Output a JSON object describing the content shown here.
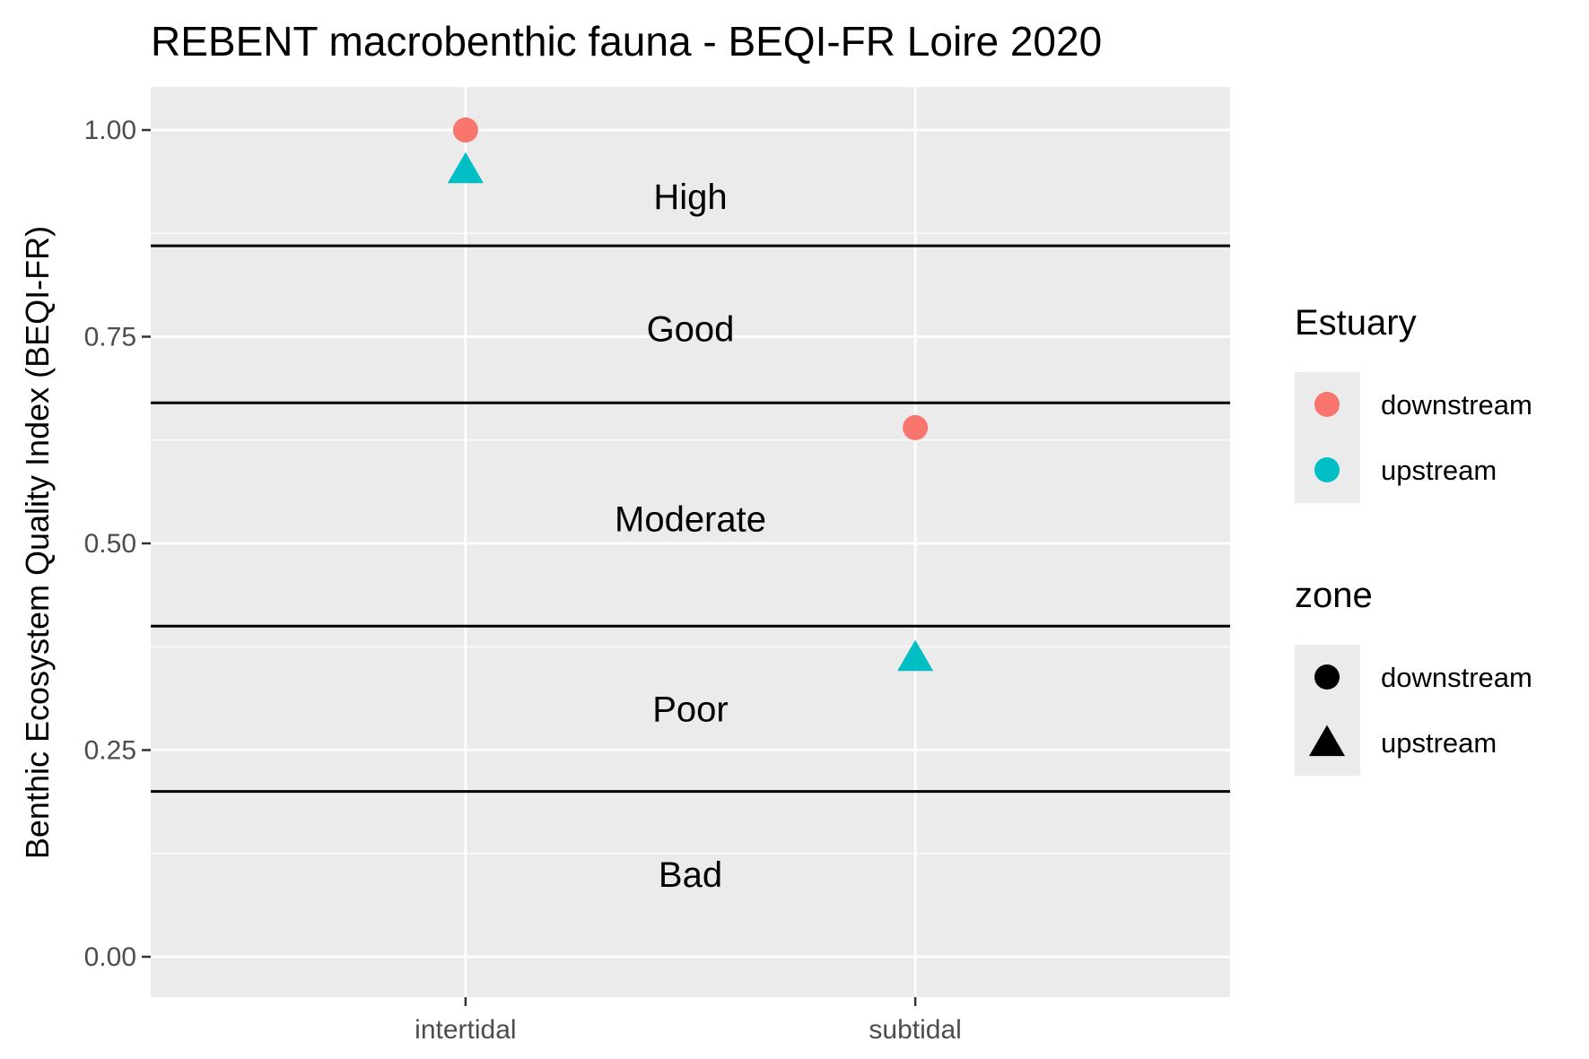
{
  "chart_data": {
    "type": "scatter",
    "title": "REBENT macrobenthic fauna - BEQI-FR Loire 2020",
    "xlabel": "",
    "ylabel": "Benthic Ecosystem Quality Index (BEQI-FR)",
    "categories": [
      "intertidal",
      "subtidal"
    ],
    "ylim": [
      -0.05,
      1.05
    ],
    "yticks": [
      0.0,
      0.25,
      0.5,
      0.75,
      1.0
    ],
    "ytick_labels": [
      "0.00",
      "0.25",
      "0.50",
      "0.75",
      "1.00"
    ],
    "grid": true,
    "series": [
      {
        "name": "downstream",
        "shape": "circle",
        "color": "#F8766D",
        "values": [
          1.0,
          0.64
        ]
      },
      {
        "name": "upstream",
        "shape": "triangle",
        "color": "#00BFC4",
        "values": [
          0.95,
          0.36
        ]
      }
    ],
    "thresholds": [
      0.2,
      0.4,
      0.67,
      0.86
    ],
    "bands": [
      {
        "label": "High",
        "y": 0.92
      },
      {
        "label": "Good",
        "y": 0.76
      },
      {
        "label": "Moderate",
        "y": 0.53
      },
      {
        "label": "Poor",
        "y": 0.3
      },
      {
        "label": "Bad",
        "y": 0.1
      }
    ],
    "legends": [
      {
        "title": "Estuary",
        "items": [
          {
            "label": "downstream",
            "shape": "circle",
            "color": "#F8766D"
          },
          {
            "label": "upstream",
            "shape": "circle",
            "color": "#00BFC4"
          }
        ]
      },
      {
        "title": "zone",
        "items": [
          {
            "label": "downstream",
            "shape": "circle",
            "color": "#000000"
          },
          {
            "label": "upstream",
            "shape": "triangle",
            "color": "#000000"
          }
        ]
      }
    ],
    "legend_position": "right",
    "panel_color": "#EBEBEB"
  }
}
